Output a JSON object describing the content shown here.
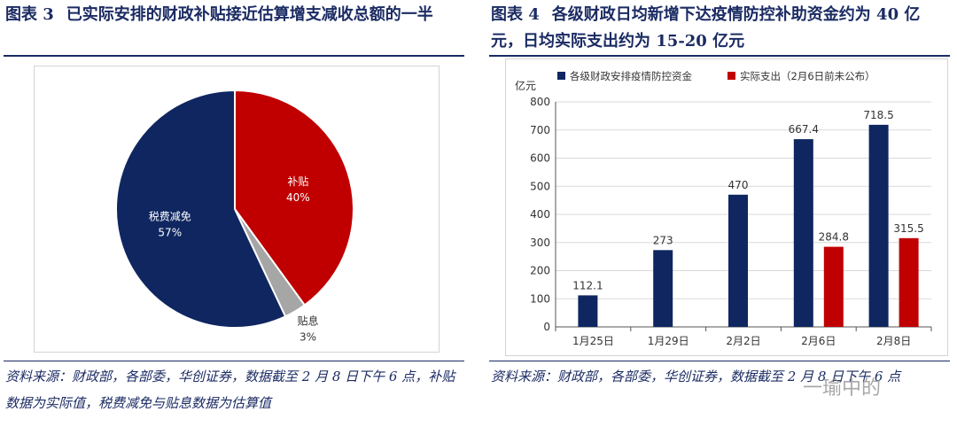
{
  "left_figure": {
    "number": "图表 3",
    "title": "已实际安排的财政补贴接近估算增支减收总额的一半",
    "source": "资料来源：财政部，各部委，华创证券，数据截至 2 月 8 日下午 6 点，补贴数据为实际值，税费减免与贴息数据为估算值"
  },
  "right_figure": {
    "number": "图表 4",
    "title": "各级财政日均新增下达疫情防控补助资金约为 40 亿元，日均实际支出约为 15-20 亿元",
    "source": "资料来源：财政部，各部委，华创证券，数据截至 2 月 8 日下午 6 点"
  },
  "watermark": "一瑜中的",
  "chart_data": [
    {
      "type": "pie",
      "slices": [
        {
          "label": "补贴",
          "value": 40,
          "value_label": "40%",
          "color": "#c00000"
        },
        {
          "label": "贴息",
          "value": 3,
          "value_label": "3%",
          "color": "#a6a6a6"
        },
        {
          "label": "税费减免",
          "value": 57,
          "value_label": "57%",
          "color": "#0f2660"
        }
      ],
      "start": "12 o'clock, clockwise"
    },
    {
      "type": "bar",
      "categories": [
        "1月25日",
        "1月29日",
        "2月2日",
        "2月6日",
        "2月8日"
      ],
      "series": [
        {
          "name": "各级财政安排疫情防控资金",
          "color": "#0f2660",
          "values": [
            112.1,
            273,
            470,
            667.4,
            718.5
          ],
          "value_labels": [
            "112.1",
            "273",
            "470",
            "667.4",
            "718.5"
          ]
        },
        {
          "name": "实际支出（2月6日前未公布）",
          "color": "#c00000",
          "values": [
            null,
            null,
            null,
            284.8,
            315.5
          ],
          "value_labels": [
            "",
            "",
            "",
            "284.8",
            "315.5"
          ]
        }
      ],
      "y_unit": "亿元",
      "ylim": [
        0,
        800
      ],
      "yticks": [
        0,
        100,
        200,
        300,
        400,
        500,
        600,
        700,
        800
      ],
      "grid": "horizontal",
      "legend": "top"
    }
  ]
}
